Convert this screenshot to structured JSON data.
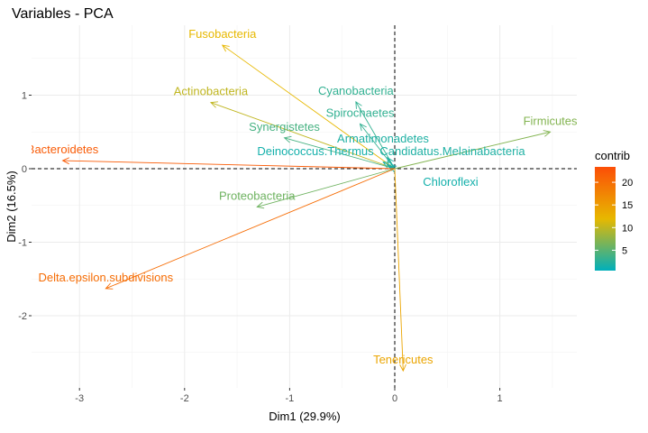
{
  "chart_data": {
    "type": "pca-variables",
    "title": "Variables - PCA",
    "xlabel": "Dim1 (29.9%)",
    "ylabel": "Dim2 (16.5%)",
    "xlim": [
      -3.45,
      1.75
    ],
    "ylim": [
      -2.9,
      1.95
    ],
    "xticks": [
      -3,
      -2,
      -1,
      0,
      1
    ],
    "yticks": [
      -2,
      -1,
      0,
      1
    ],
    "grid": true,
    "legend": {
      "title": "contrib",
      "position": "right",
      "range": [
        0.5,
        23.4
      ],
      "ticks": [
        5,
        10,
        15,
        20
      ],
      "colors": {
        "low": "#00AFBB",
        "mid": "#E7B800",
        "high": "#FC4E07"
      }
    },
    "variables": [
      {
        "name": "Fusobacteria",
        "x": -1.64,
        "y": 1.68,
        "contrib": 12
      },
      {
        "name": "Actinobacteria",
        "x": -1.75,
        "y": 0.9,
        "contrib": 10
      },
      {
        "name": "Cyanobacteria",
        "x": -0.37,
        "y": 0.91,
        "contrib": 3
      },
      {
        "name": "Spirochaetes",
        "x": -0.33,
        "y": 0.61,
        "contrib": 3
      },
      {
        "name": "Firmicutes",
        "x": 1.48,
        "y": 0.5,
        "contrib": 7
      },
      {
        "name": "Synergistetes",
        "x": -1.05,
        "y": 0.42,
        "contrib": 4
      },
      {
        "name": "Armatimonadetes",
        "x": -0.07,
        "y": 0.15,
        "contrib": 2
      },
      {
        "name": "Candidatus.Melainabacteria",
        "x": -0.11,
        "y": 0.09,
        "contrib": 2
      },
      {
        "name": "Deinococcus.Thermus",
        "x": -0.07,
        "y": 0.05,
        "contrib": 1.5
      },
      {
        "name": "Chloroflexi",
        "x": -0.05,
        "y": 0.03,
        "contrib": 1.5
      },
      {
        "name": "Bacteroidetes",
        "x": -3.16,
        "y": 0.11,
        "contrib": 22
      },
      {
        "name": "Proteobacteria",
        "x": -1.31,
        "y": -0.52,
        "contrib": 6
      },
      {
        "name": "Delta.epsilon.subdivisions",
        "x": -2.75,
        "y": -1.63,
        "contrib": 20
      },
      {
        "name": "Tenericutes",
        "x": 0.08,
        "y": -2.75,
        "contrib": 14
      }
    ]
  }
}
